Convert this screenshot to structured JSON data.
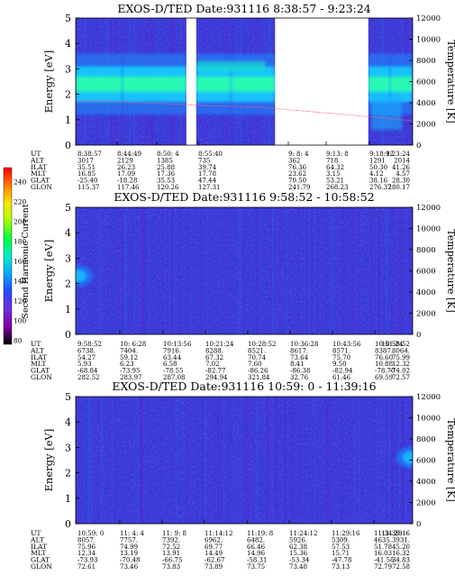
{
  "colorbar": {
    "label": "Second Harmonic Current",
    "ticks": [
      "240",
      "220",
      "200",
      "180",
      "160",
      "140",
      "120",
      "100",
      "80"
    ],
    "colors": [
      "#ff0000",
      "#ff7a00",
      "#ffe600",
      "#a8ff00",
      "#00ff3c",
      "#00f0c8",
      "#00aaff",
      "#2a48ff",
      "#6a30d8",
      "#8000a0",
      "#000000"
    ]
  },
  "chart_data": [
    {
      "type": "heatmap",
      "title": "EXOS-D/TED   Date:931116   8:38:57 - 9:23:24",
      "ylabel": "Energy [eV]",
      "ylabel_right": "Temperature [K]",
      "ylim": [
        0,
        5
      ],
      "ylim_right": [
        0,
        12000
      ],
      "yticks": [
        "0",
        "1",
        "2",
        "3",
        "4",
        "5"
      ],
      "yticks_right": [
        "0",
        "2000",
        "4000",
        "6000",
        "8000",
        "10000",
        "12000"
      ],
      "time_range_min": [
        0,
        44.45
      ],
      "data_gaps_min": [
        [
          14.6,
          15.9
        ],
        [
          26.3,
          38.6
        ]
      ],
      "background_level": "Second Harmonic Current ~105-110",
      "band": {
        "energy_center_eV": 2.4,
        "energy_width_eV": 1.4,
        "level": "Second Harmonic Current ~180"
      },
      "temperature_K": {
        "x_min": [
          0,
          6,
          12,
          18,
          24,
          40,
          44.45
        ],
        "values": [
          4200,
          4100,
          3900,
          3700,
          3600,
          2600,
          2300
        ]
      },
      "table": {
        "rows": [
          "UT",
          "ALT",
          "ILAT",
          "MLT",
          "GLAT",
          "GLON"
        ],
        "columns": [
          [
            "8:38:57",
            "3017",
            "35.51",
            "16.85",
            "-25.40",
            "115.37"
          ],
          [
            "8:44:49",
            "2129",
            "26.23",
            "17.09",
            "-18.28",
            "117.46"
          ],
          [
            "8:50: 4",
            "1385",
            "25.88",
            "17.36",
            "35.53",
            "120.26"
          ],
          [
            "8:55:40",
            "735",
            "39.74",
            "17.78",
            "47.44",
            "127.31"
          ],
          [
            "9: 8: 4",
            "362",
            "76.36",
            "23.62",
            "70.50",
            "241.79"
          ],
          [
            "9:13: 8",
            "718",
            "64.32",
            "3.15",
            "53.21",
            "268.23"
          ],
          [
            "9:18:12",
            "1291",
            "50.30",
            "4.12",
            "38.16",
            "276.37"
          ],
          [
            "9:23:24",
            "2014",
            "41.26",
            "4.57",
            "28.30",
            "280.17"
          ]
        ]
      }
    },
    {
      "type": "heatmap",
      "title": "EXOS-D/TED   Date:931116   9:58:52 - 10:58:52",
      "ylabel": "Energy [eV]",
      "ylabel_right": "Temperature [K]",
      "ylim": [
        0,
        5
      ],
      "ylim_right": [
        0,
        12000
      ],
      "yticks": [
        "0",
        "1",
        "2",
        "3",
        "4",
        "5"
      ],
      "yticks_right": [
        "0",
        "2000",
        "4000",
        "6000",
        "8000",
        "10000",
        "12000"
      ],
      "time_range_min": [
        0,
        60
      ],
      "background_level": "Second Harmonic Current ~105",
      "blob": {
        "time_min": 0.5,
        "energy_eV": 2.3,
        "level": "Second Harmonic Current ~140"
      },
      "table": {
        "rows": [
          "UT",
          "ALT",
          "ILAT",
          "MLT",
          "GLAT",
          "GLON"
        ],
        "columns": [
          [
            "9:58:52",
            "6738.",
            "54.27",
            "5.93",
            "-68.84",
            "282.52"
          ],
          [
            "10: 6:28",
            "7404.",
            "59.12",
            "6.23",
            "-73.95",
            "283.97"
          ],
          [
            "10:13:56",
            "7916.",
            "63.44",
            "6.58",
            "-78.55",
            "287.08"
          ],
          [
            "10:21:24",
            "8288.",
            "67.32",
            "7.02",
            "-82.77",
            "294.94"
          ],
          [
            "10:28:52",
            "8521.",
            "70.74",
            "7.60",
            "-86.26",
            "321.84"
          ],
          [
            "10:36:28",
            "8617.",
            "73.64",
            "8.41",
            "-86.38",
            "32.76"
          ],
          [
            "10:43:56",
            "8571.",
            "75.70",
            "9.50",
            "-82.94",
            "61.46"
          ],
          [
            "10:51:24",
            "8387.",
            "76.60",
            "10.88",
            "-78.70",
            "69.59"
          ],
          [
            "10:58:52",
            "8064.",
            "75.99",
            "12.32",
            "-74.02",
            "72.57"
          ]
        ]
      }
    },
    {
      "type": "heatmap",
      "title": "EXOS-D/TED   Date:931116   10:59: 0 - 11:39:16",
      "ylabel": "Energy [eV]",
      "ylabel_right": "Temperature [K]",
      "ylim": [
        0,
        5
      ],
      "ylim_right": [
        0,
        12000
      ],
      "yticks": [
        "0",
        "1",
        "2",
        "3",
        "4",
        "5"
      ],
      "yticks_right": [
        "0",
        "2000",
        "4000",
        "6000",
        "8000",
        "10000",
        "12000"
      ],
      "time_range_min": [
        0,
        40.27
      ],
      "background_level": "Second Harmonic Current ~105",
      "blob": {
        "time_min": 40,
        "energy_eV": 2.6,
        "level": "Second Harmonic Current ~150"
      },
      "table": {
        "rows": [
          "UT",
          "ALT",
          "ILAT",
          "MLT",
          "GLAT",
          "GLON"
        ],
        "columns": [
          [
            "10:59: 0",
            "8057.",
            "75.96",
            "12.34",
            "-73.93",
            "72.61"
          ],
          [
            "11: 4: 4",
            "7757.",
            "74.99",
            "13.19",
            "-70.48",
            "73.46"
          ],
          [
            "11: 9: 8",
            "7392.",
            "72.52",
            "13.91",
            "-66.75",
            "73.83"
          ],
          [
            "11:14:12",
            "6962.",
            "69.77",
            "14.49",
            "-62.67",
            "73.89"
          ],
          [
            "11:19: 8",
            "6482.",
            "66.46",
            "14.96",
            "-58.31",
            "73.75"
          ],
          [
            "11:24:12",
            "5926.",
            "62.38",
            "15.36",
            "-53.34",
            "73.48"
          ],
          [
            "11:29:16",
            "5309.",
            "57.53",
            "15.71",
            "-47.78",
            "73.13"
          ],
          [
            "11:34:20",
            "4635.",
            "51.78",
            "16.03",
            "-41.55",
            "72.79"
          ],
          [
            "11:39:16",
            "3931.",
            "45.20",
            "16.32",
            "-34.83",
            "72.58"
          ]
        ]
      }
    }
  ]
}
